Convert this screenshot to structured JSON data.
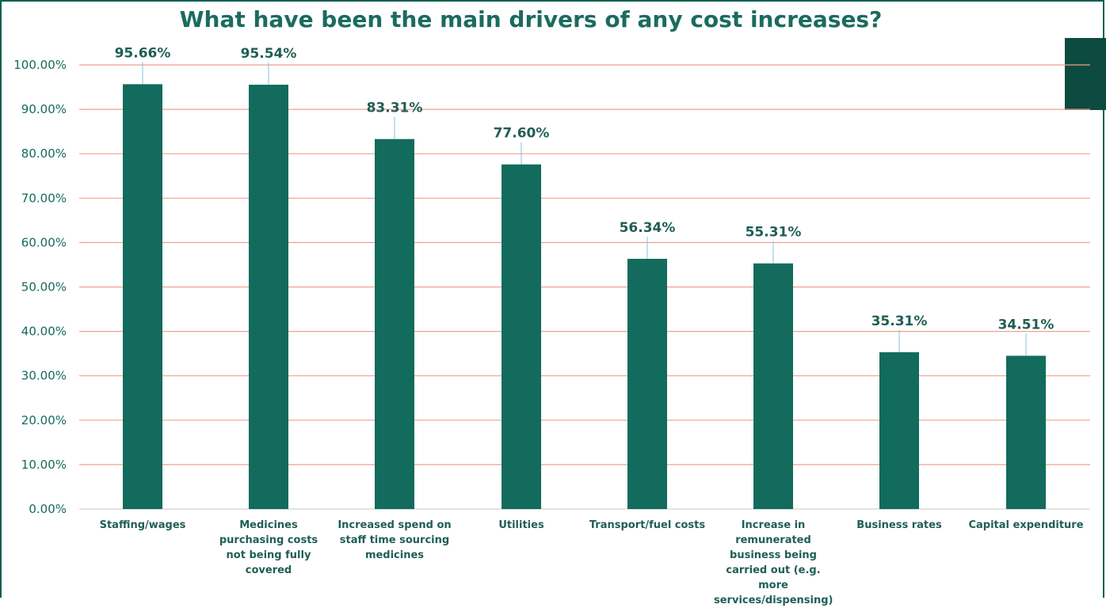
{
  "colors": {
    "bar": "#126b5d",
    "grid": "#f2a189",
    "text": "#1f5e55",
    "title": "#1b6b5e",
    "accent_block": "#0d4a40"
  },
  "chart_data": {
    "type": "bar",
    "title": "What have been the main drivers of any cost increases?",
    "categories": [
      "Staffing/wages",
      "Medicines purchasing costs not being fully covered",
      "Increased spend on staff time sourcing medicines",
      "Utilities",
      "Transport/fuel costs",
      "Increase in remunerated business being carried out (e.g. more services/dispensing)",
      "Business rates",
      "Capital expenditure"
    ],
    "values": [
      95.66,
      95.54,
      83.31,
      77.6,
      56.34,
      55.31,
      35.31,
      34.51
    ],
    "value_labels": [
      "95.66%",
      "95.54%",
      "83.31%",
      "77.60%",
      "56.34%",
      "55.31%",
      "35.31%",
      "34.51%"
    ],
    "yticks": [
      "0.00%",
      "10.00%",
      "20.00%",
      "30.00%",
      "40.00%",
      "50.00%",
      "60.00%",
      "70.00%",
      "80.00%",
      "90.00%",
      "100.00%"
    ],
    "ylim": [
      0,
      100
    ],
    "grid": true,
    "legend": "none"
  }
}
